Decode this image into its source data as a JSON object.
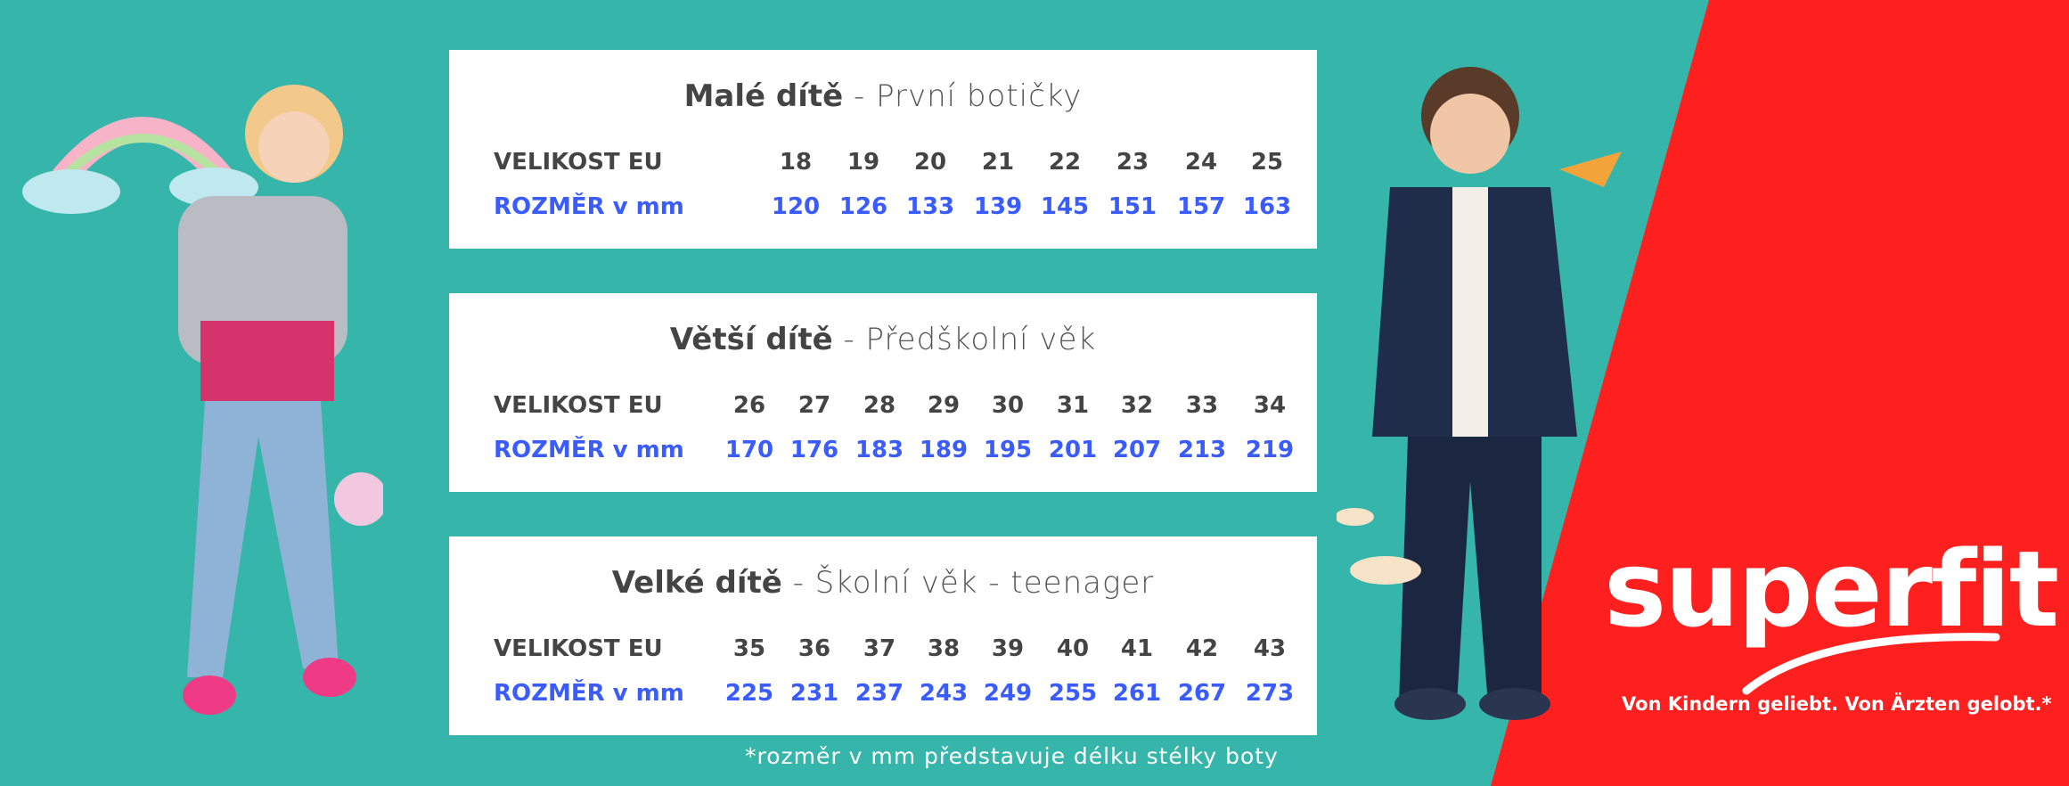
{
  "colors": {
    "teal": "#36b5ab",
    "red": "#fe1f1f",
    "blue": "#3a5cff",
    "text": "#444444"
  },
  "tables": [
    {
      "title_bold": "Malé dítě",
      "title_rest": " - První botičky",
      "size_label": "VELIKOST EU",
      "mm_label": "ROZMĚR v mm",
      "sizes": [
        "18",
        "19",
        "20",
        "21",
        "22",
        "23",
        "24",
        "25"
      ],
      "mm": [
        "120",
        "126",
        "133",
        "139",
        "145",
        "151",
        "157",
        "163"
      ]
    },
    {
      "title_bold": "Větší dítě",
      "title_rest": " - Předškolní věk",
      "size_label": "VELIKOST EU",
      "mm_label": "ROZMĚR v mm",
      "sizes": [
        "26",
        "27",
        "28",
        "29",
        "30",
        "31",
        "32",
        "33",
        "34"
      ],
      "mm": [
        "170",
        "176",
        "183",
        "189",
        "195",
        "201",
        "207",
        "213",
        "219"
      ]
    },
    {
      "title_bold": "Velké dítě",
      "title_rest": " - Školní věk - teenager",
      "size_label": "VELIKOST EU",
      "mm_label": "ROZMĚR v mm",
      "sizes": [
        "35",
        "36",
        "37",
        "38",
        "39",
        "40",
        "41",
        "42",
        "43"
      ],
      "mm": [
        "225",
        "231",
        "237",
        "243",
        "249",
        "255",
        "261",
        "267",
        "273"
      ]
    }
  ],
  "footnote": "*rozměr v mm představuje délku stélky boty",
  "brand": {
    "logo": "superfit",
    "tagline": "Von Kindern geliebt. Von Ärzten gelobt.*"
  }
}
